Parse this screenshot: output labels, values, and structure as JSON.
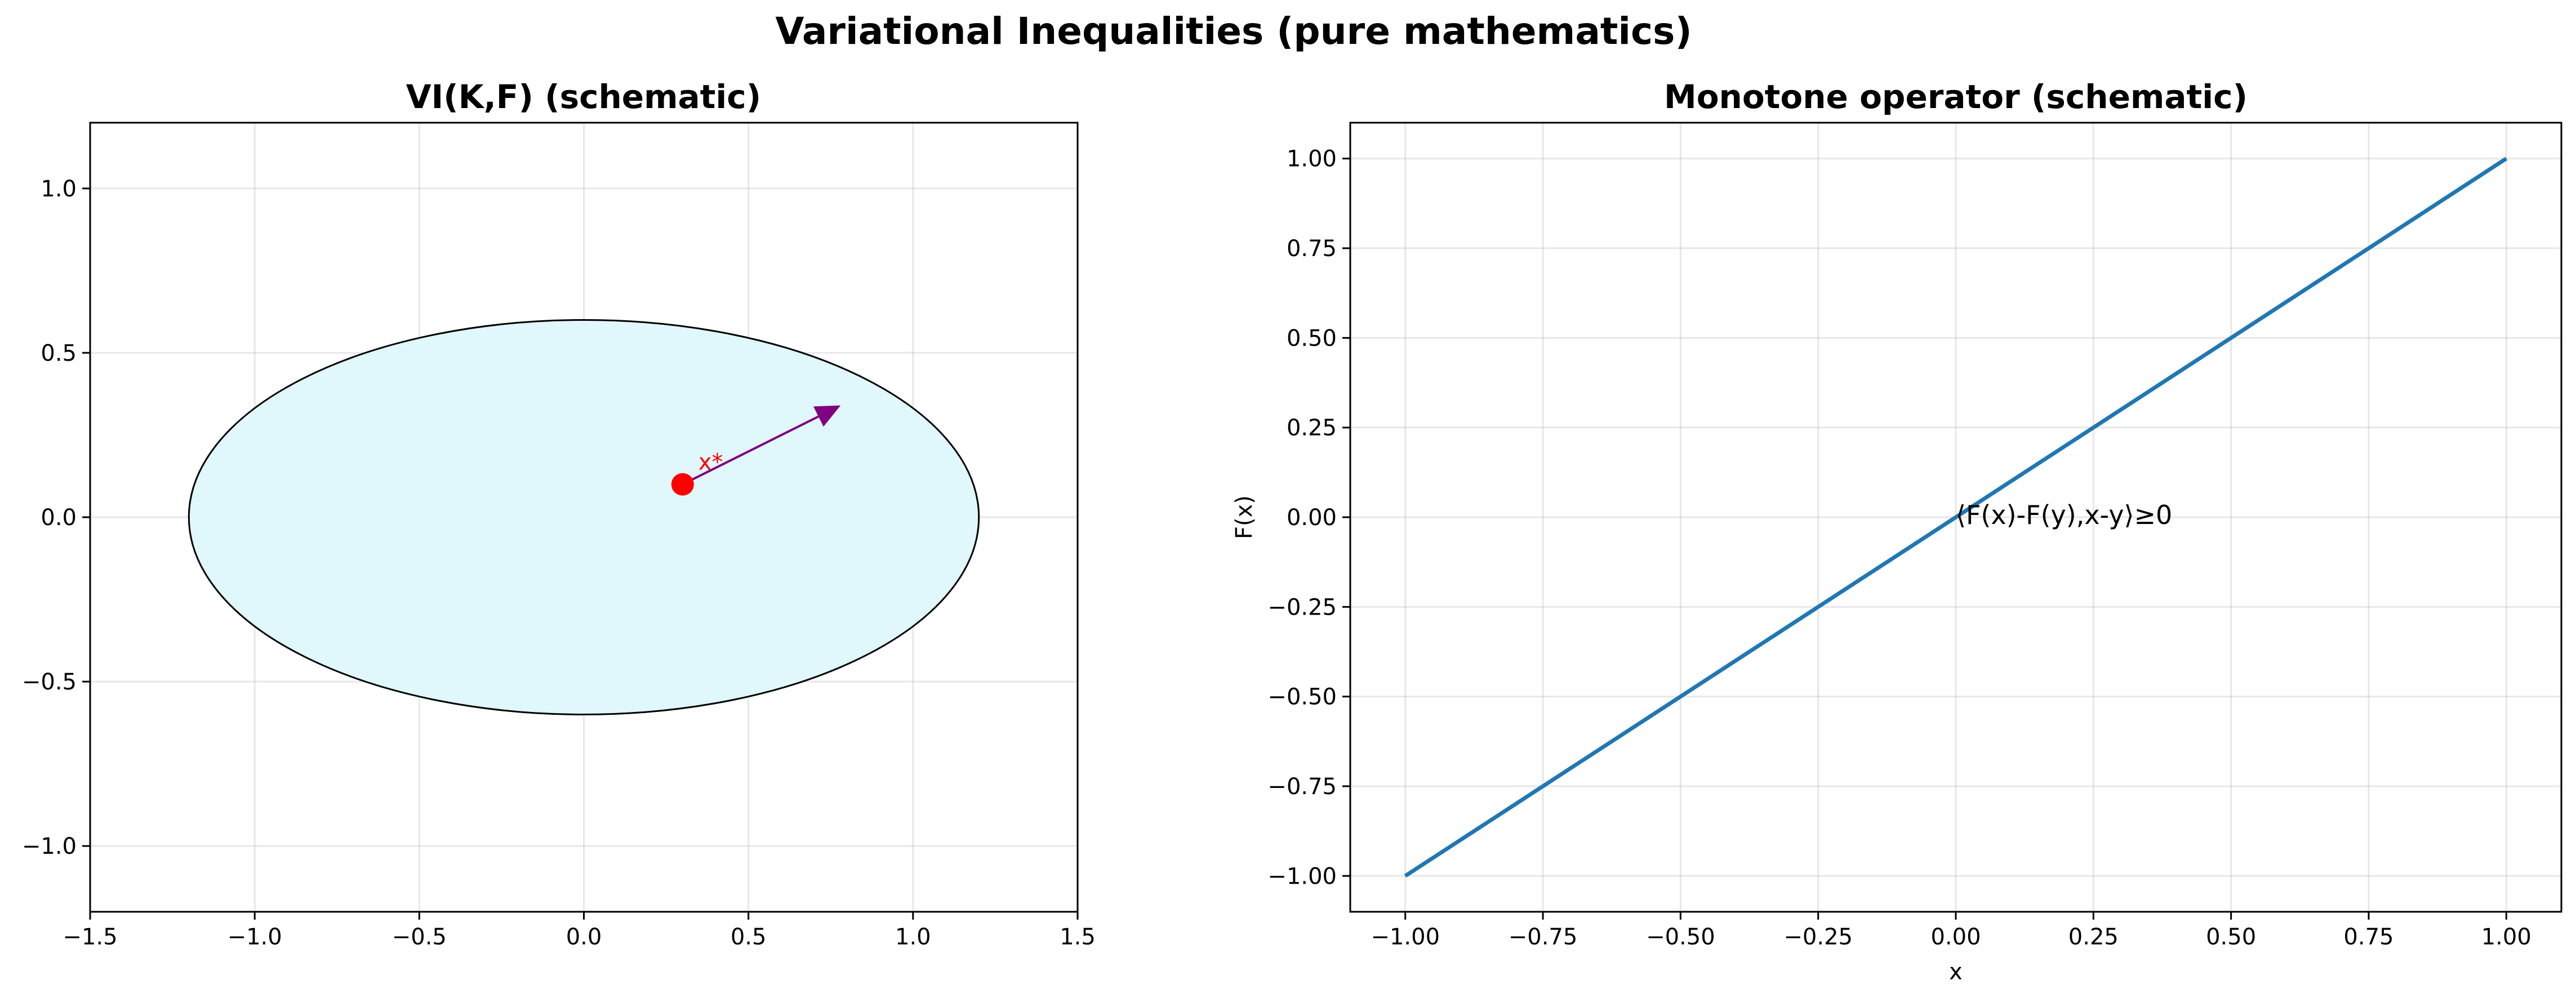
{
  "figure": {
    "suptitle": "Variational Inequalities (pure mathematics)"
  },
  "chart_data": [
    {
      "type": "scatter",
      "title": "VI(K,F) (schematic)",
      "xlabel": "",
      "ylabel": "",
      "xlim": [
        -1.5,
        1.5
      ],
      "ylim": [
        -1.2,
        1.2
      ],
      "xticks": [
        -1.5,
        -1.0,
        -0.5,
        0.0,
        0.5,
        1.0,
        1.5
      ],
      "xtick_labels": [
        "−1.5",
        "−1.0",
        "−0.5",
        "0.0",
        "0.5",
        "1.0",
        "1.5"
      ],
      "yticks": [
        -1.0,
        -0.5,
        0.0,
        0.5,
        1.0
      ],
      "ytick_labels": [
        "−1.0",
        "−0.5",
        "0.0",
        "0.5",
        "1.0"
      ],
      "grid": true,
      "set_K": {
        "shape": "ellipse",
        "center": [
          0,
          0
        ],
        "semi_axes": [
          1.2,
          0.6
        ],
        "fill": "#e0f7fb",
        "edge": "#000000"
      },
      "point": {
        "x": 0.3,
        "y": 0.1,
        "label": "x*",
        "color": "#ff0000"
      },
      "arrow": {
        "from": [
          0.3,
          0.1
        ],
        "to": [
          0.78,
          0.34
        ],
        "color": "#800080"
      }
    },
    {
      "type": "line",
      "title": "Monotone operator (schematic)",
      "xlabel": "x",
      "ylabel": "F(x)",
      "xlim": [
        -1.1,
        1.1
      ],
      "ylim": [
        -1.1,
        1.1
      ],
      "xticks": [
        -1.0,
        -0.75,
        -0.5,
        -0.25,
        0.0,
        0.25,
        0.5,
        0.75,
        1.0
      ],
      "xtick_labels": [
        "−1.00",
        "−0.75",
        "−0.50",
        "−0.25",
        "0.00",
        "0.25",
        "0.50",
        "0.75",
        "1.00"
      ],
      "yticks": [
        -1.0,
        -0.75,
        -0.5,
        -0.25,
        0.0,
        0.25,
        0.5,
        0.75,
        1.0
      ],
      "ytick_labels": [
        "−1.00",
        "−0.75",
        "−0.50",
        "−0.25",
        "0.00",
        "0.25",
        "0.50",
        "0.75",
        "1.00"
      ],
      "grid": true,
      "series": [
        {
          "x": [
            -1.0,
            1.0
          ],
          "y": [
            -1.0,
            1.0
          ],
          "color": "#1f77b4"
        }
      ],
      "annotation": {
        "text": "⟨F(x)-F(y),x-y⟩≥0",
        "x": 0.0,
        "y": 0.0
      }
    }
  ]
}
